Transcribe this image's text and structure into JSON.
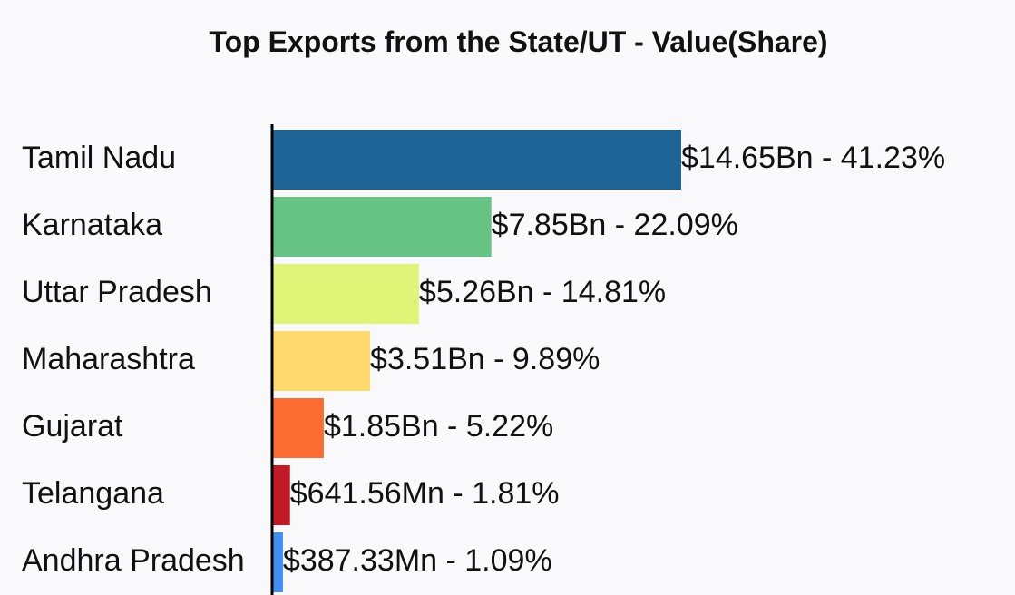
{
  "chart_data": {
    "type": "bar",
    "orientation": "horizontal",
    "title": "Top Exports from the State/UT - Value(Share)",
    "categories": [
      "Tamil Nadu",
      "Karnataka",
      "Uttar Pradesh",
      "Maharashtra",
      "Gujarat",
      "Telangana",
      "Andhra Pradesh"
    ],
    "values": [
      14.65,
      7.85,
      5.26,
      3.51,
      1.85,
      0.64156,
      0.38733
    ],
    "value_unit": "$Bn",
    "data_labels": [
      "$14.65Bn - 41.23%",
      "$7.85Bn - 22.09%",
      "$5.26Bn - 14.81%",
      "$3.51Bn - 9.89%",
      "$1.85Bn - 5.22%",
      "$641.56Mn - 1.81%",
      "$387.33Mn - 1.09%"
    ],
    "shares": [
      41.23,
      22.09,
      14.81,
      9.89,
      5.22,
      1.81,
      1.09
    ],
    "colors": [
      "#1f6497",
      "#66c383",
      "#e0f477",
      "#fed96d",
      "#fb6c33",
      "#c01a27",
      "#3f8ff2"
    ],
    "xlim": [
      0,
      14.65
    ],
    "grid": false,
    "legend": "none"
  }
}
